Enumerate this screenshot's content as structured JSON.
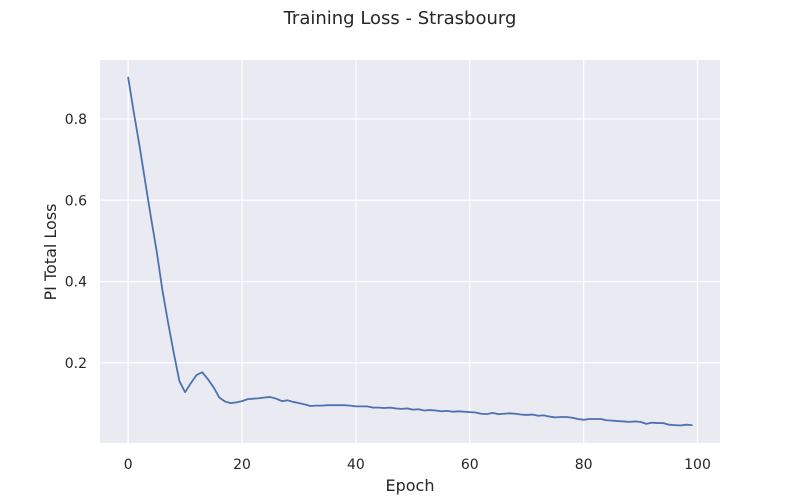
{
  "chart_data": {
    "type": "line",
    "title": "Training Loss - Strasbourg",
    "xlabel": "Epoch",
    "ylabel": "PI Total Loss",
    "xlim": [
      -4.95,
      103.95
    ],
    "ylim": [
      0.003,
      0.945
    ],
    "xticks": [
      0,
      20,
      40,
      60,
      80,
      100
    ],
    "yticks": [
      0.2,
      0.4,
      0.6,
      0.8
    ],
    "grid": true,
    "style": {
      "background": "#eaeaf2",
      "grid_color": "#ffffff",
      "line_color": "#4c72b0"
    },
    "series": [
      {
        "name": "PI Total Loss",
        "x": [
          0,
          1,
          2,
          3,
          4,
          5,
          6,
          7,
          8,
          9,
          10,
          11,
          12,
          13,
          14,
          15,
          16,
          17,
          18,
          19,
          20,
          21,
          22,
          23,
          24,
          25,
          26,
          27,
          28,
          29,
          30,
          31,
          32,
          33,
          34,
          35,
          36,
          37,
          38,
          39,
          40,
          41,
          42,
          43,
          44,
          45,
          46,
          47,
          48,
          49,
          50,
          51,
          52,
          53,
          54,
          55,
          56,
          57,
          58,
          59,
          60,
          61,
          62,
          63,
          64,
          65,
          66,
          67,
          68,
          69,
          70,
          71,
          72,
          73,
          74,
          75,
          76,
          77,
          78,
          79,
          80,
          81,
          82,
          83,
          84,
          85,
          86,
          87,
          88,
          89,
          90,
          91,
          92,
          93,
          94,
          95,
          96,
          97,
          98,
          99
        ],
        "values": [
          0.902,
          0.815,
          0.733,
          0.645,
          0.558,
          0.475,
          0.38,
          0.3,
          0.225,
          0.155,
          0.128,
          0.15,
          0.17,
          0.177,
          0.16,
          0.14,
          0.115,
          0.105,
          0.101,
          0.103,
          0.106,
          0.111,
          0.112,
          0.113,
          0.115,
          0.116,
          0.112,
          0.106,
          0.108,
          0.104,
          0.101,
          0.098,
          0.094,
          0.095,
          0.095,
          0.096,
          0.096,
          0.096,
          0.096,
          0.095,
          0.093,
          0.093,
          0.093,
          0.09,
          0.09,
          0.089,
          0.09,
          0.088,
          0.087,
          0.088,
          0.085,
          0.086,
          0.083,
          0.084,
          0.083,
          0.081,
          0.082,
          0.08,
          0.081,
          0.08,
          0.079,
          0.078,
          0.075,
          0.074,
          0.077,
          0.074,
          0.075,
          0.076,
          0.075,
          0.073,
          0.072,
          0.073,
          0.07,
          0.071,
          0.068,
          0.066,
          0.067,
          0.067,
          0.065,
          0.062,
          0.06,
          0.062,
          0.062,
          0.062,
          0.059,
          0.058,
          0.057,
          0.056,
          0.055,
          0.056,
          0.055,
          0.05,
          0.053,
          0.052,
          0.052,
          0.048,
          0.047,
          0.046,
          0.048,
          0.047
        ]
      }
    ]
  }
}
